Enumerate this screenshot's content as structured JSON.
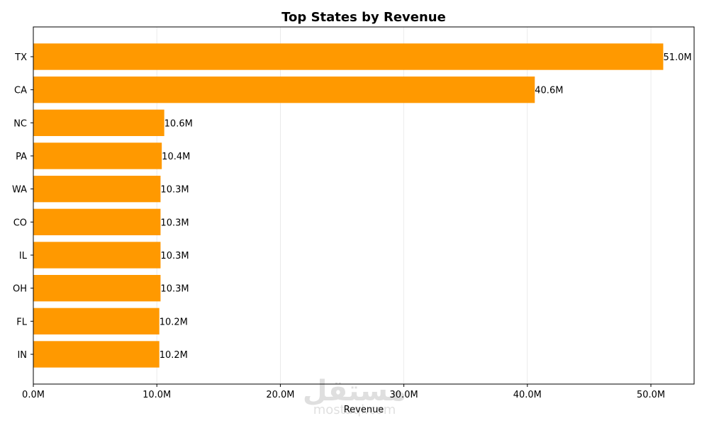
{
  "chart_data": {
    "type": "bar",
    "orientation": "horizontal",
    "title": "Top States by Revenue",
    "xlabel": "Revenue",
    "ylabel": "",
    "categories": [
      "TX",
      "CA",
      "NC",
      "PA",
      "WA",
      "CO",
      "IL",
      "OH",
      "FL",
      "IN"
    ],
    "values": [
      51.0,
      40.6,
      10.6,
      10.4,
      10.3,
      10.3,
      10.3,
      10.3,
      10.2,
      10.2
    ],
    "value_unit": "M",
    "data_labels": [
      "51.0M",
      "40.6M",
      "10.6M",
      "10.4M",
      "10.3M",
      "10.3M",
      "10.3M",
      "10.3M",
      "10.2M",
      "10.2M"
    ],
    "xticks": [
      0,
      10,
      20,
      30,
      40,
      50
    ],
    "xtick_labels": [
      "0.0M",
      "10.0M",
      "20.0M",
      "30.0M",
      "40.0M",
      "50.0M"
    ],
    "xlim": [
      0,
      53.5
    ],
    "grid": "vertical",
    "bar_color": "#ff9900"
  },
  "watermark": {
    "text": "mostaql.com",
    "logo_text": "مستقل"
  }
}
